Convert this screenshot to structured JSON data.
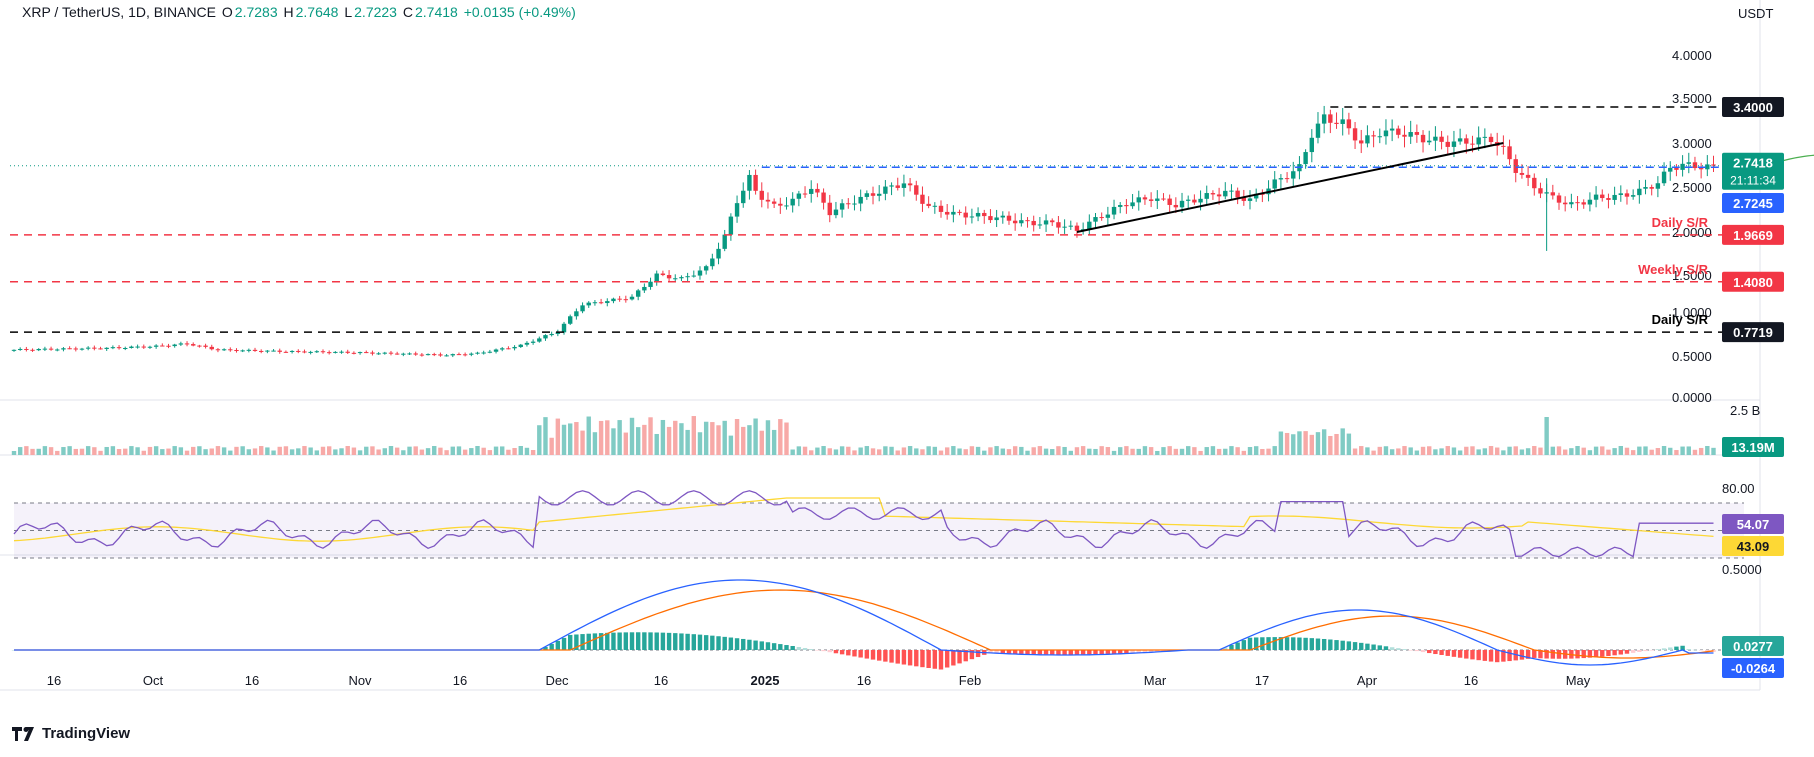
{
  "header": {
    "symbol": "XRP / TetherUS, 1D, BINANCE",
    "o_label": "O",
    "o": "2.7283",
    "h_label": "H",
    "h": "2.7648",
    "l_label": "L",
    "l": "2.7223",
    "c_label": "C",
    "c": "2.7418",
    "change": "+0.0135 (+0.49%)"
  },
  "currency": "USDT",
  "brand": "TradingView",
  "colors": {
    "up": "#089981",
    "down": "#f23645",
    "rsi": "#7e57c2",
    "rsi_ma": "#fdd835",
    "macd": "#2962ff",
    "signal": "#ff6d00",
    "forecast": "#4caf50"
  },
  "chart_data": {
    "type": "candlestick",
    "title": "XRP / TetherUS, 1D, BINANCE",
    "x_ticks": [
      "16",
      "Oct",
      "16",
      "Nov",
      "16",
      "Dec",
      "16",
      "2025",
      "16",
      "Feb",
      "Mar",
      "17",
      "Apr",
      "16",
      "May"
    ],
    "price_axis_ticks": [
      "4.0000",
      "3.5000",
      "3.0000",
      "2.5000",
      "2.0000",
      "1.5000",
      "1.0000",
      "0.5000",
      "0.0000"
    ],
    "levels": [
      {
        "value": "3.4000",
        "label": "",
        "color": "#000000"
      },
      {
        "value": "2.7418",
        "label": "",
        "color": "#089981",
        "countdown": "21:11:34"
      },
      {
        "value": "2.7245",
        "label": "",
        "color": "#2962ff"
      },
      {
        "value": "1.9669",
        "label": "Daily S/R",
        "color": "#f23645"
      },
      {
        "value": "1.4080",
        "label": "Weekly S/R",
        "color": "#f23645"
      },
      {
        "value": "0.7719",
        "label": "Daily S/R",
        "color": "#000000"
      }
    ],
    "volume": {
      "top_label": "2.5 B",
      "last": "13.19M"
    },
    "rsi": {
      "value": "54.07",
      "ma": "43.09",
      "upper": "80.00",
      "bands": [
        70,
        30
      ]
    },
    "macd": {
      "axis_label": "0.5000",
      "histogram": "0.0277",
      "macd": "-0.0264"
    }
  }
}
